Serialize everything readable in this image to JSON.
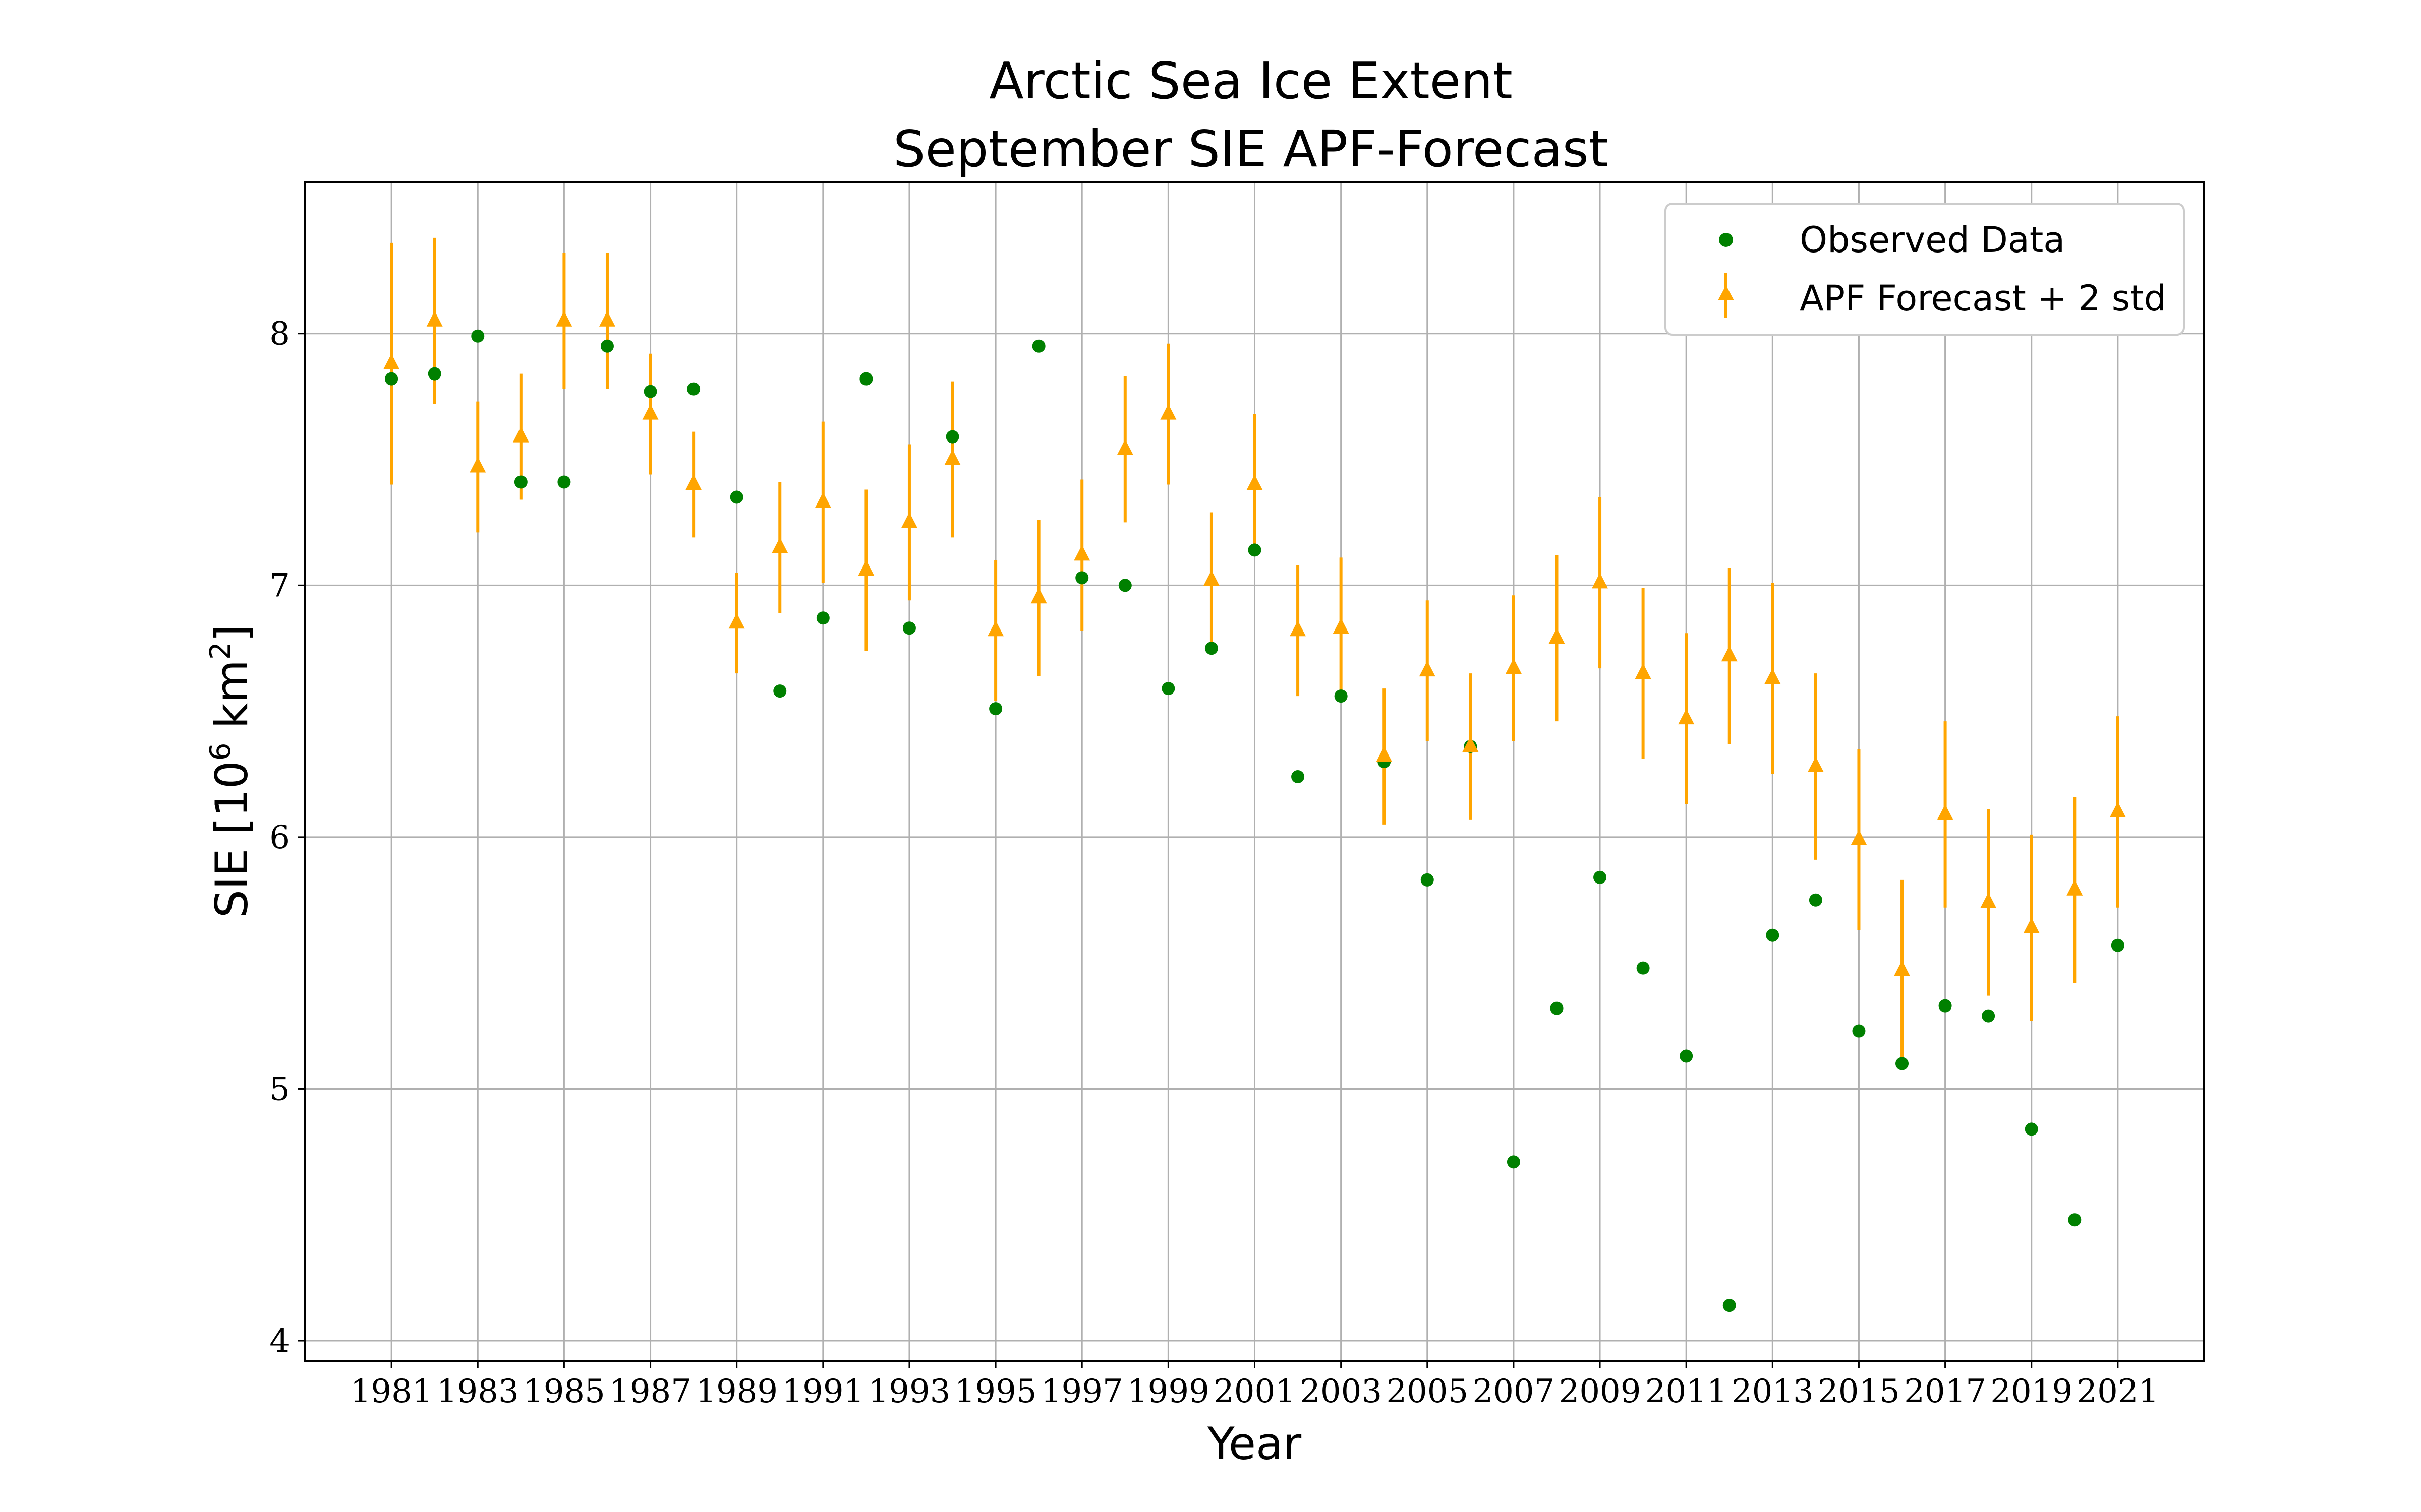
{
  "chart_data": {
    "type": "scatter",
    "title_lines": [
      "Arctic Sea Ice Extent",
      "September SIE APF-Forecast"
    ],
    "xlabel": "Year",
    "ylabel": "SIE [10",
    "ylabel_sup": "6",
    "ylabel_unit": " km",
    "ylabel_unit_sup": "2",
    "ylabel_close": "]",
    "xlim": [
      1979,
      2023
    ],
    "ylim": [
      3.92,
      8.6
    ],
    "xticks": [
      1981,
      1983,
      1985,
      1987,
      1989,
      1991,
      1993,
      1995,
      1997,
      1999,
      2001,
      2003,
      2005,
      2007,
      2009,
      2011,
      2013,
      2015,
      2017,
      2019,
      2021
    ],
    "yticks": [
      4,
      5,
      6,
      7,
      8
    ],
    "grid": true,
    "legend_position": "top-right",
    "colors": {
      "observed": "#008000",
      "forecast": "#ffa500"
    },
    "series": [
      {
        "name": "Observed Data",
        "marker": "circle",
        "x": [
          1981,
          1982,
          1983,
          1984,
          1985,
          1986,
          1987,
          1988,
          1989,
          1990,
          1991,
          1992,
          1993,
          1994,
          1995,
          1996,
          1997,
          1998,
          1999,
          2000,
          2001,
          2002,
          2003,
          2004,
          2005,
          2006,
          2007,
          2008,
          2009,
          2010,
          2011,
          2012,
          2013,
          2014,
          2015,
          2016,
          2017,
          2018,
          2019,
          2020,
          2021
        ],
        "y": [
          7.82,
          7.84,
          7.99,
          7.41,
          7.41,
          7.95,
          7.77,
          7.78,
          7.35,
          6.58,
          6.87,
          7.82,
          6.83,
          7.59,
          6.51,
          7.95,
          7.03,
          7.0,
          6.59,
          6.75,
          7.14,
          6.24,
          6.56,
          6.3,
          5.83,
          6.36,
          4.71,
          5.32,
          5.84,
          5.48,
          5.13,
          4.14,
          5.61,
          5.75,
          5.23,
          5.1,
          5.33,
          5.29,
          4.84,
          4.48,
          5.57
        ]
      },
      {
        "name": "APF Forecast + 2 std",
        "marker": "triangle",
        "x": [
          1981,
          1982,
          1983,
          1984,
          1985,
          1986,
          1987,
          1988,
          1989,
          1990,
          1991,
          1992,
          1993,
          1994,
          1995,
          1996,
          1997,
          1998,
          1999,
          2000,
          2001,
          2002,
          2003,
          2004,
          2005,
          2006,
          2007,
          2008,
          2009,
          2010,
          2011,
          2012,
          2013,
          2014,
          2015,
          2016,
          2017,
          2018,
          2019,
          2020,
          2021
        ],
        "y": [
          7.88,
          8.05,
          7.47,
          7.59,
          8.05,
          8.05,
          7.68,
          7.4,
          6.85,
          7.15,
          7.33,
          7.06,
          7.25,
          7.5,
          6.82,
          6.95,
          7.12,
          7.54,
          7.68,
          7.02,
          7.4,
          6.82,
          6.83,
          6.32,
          6.66,
          6.36,
          6.67,
          6.79,
          7.01,
          6.65,
          6.47,
          6.72,
          6.63,
          6.28,
          5.99,
          5.47,
          6.09,
          5.74,
          5.64,
          5.79,
          6.1
        ],
        "err": [
          0.48,
          0.33,
          0.26,
          0.25,
          0.27,
          0.27,
          0.24,
          0.21,
          0.2,
          0.26,
          0.32,
          0.32,
          0.31,
          0.31,
          0.28,
          0.31,
          0.3,
          0.29,
          0.28,
          0.27,
          0.28,
          0.26,
          0.28,
          0.27,
          0.28,
          0.29,
          0.29,
          0.33,
          0.34,
          0.34,
          0.34,
          0.35,
          0.38,
          0.37,
          0.36,
          0.36,
          0.37,
          0.37,
          0.37,
          0.37,
          0.38
        ]
      }
    ]
  }
}
